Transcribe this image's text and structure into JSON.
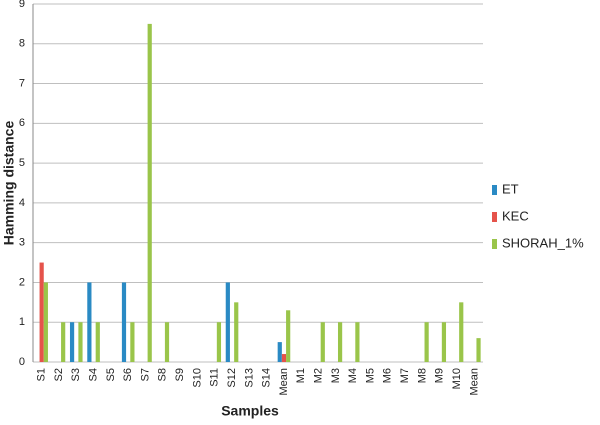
{
  "chart_data": {
    "type": "bar",
    "xlabel": "Samples",
    "ylabel": "Hamming distance",
    "categories": [
      "S1",
      "S2",
      "S3",
      "S4",
      "S5",
      "S6",
      "S7",
      "S8",
      "S9",
      "S10",
      "S11",
      "S12",
      "S13",
      "S14",
      "Mean",
      "M1",
      "M2",
      "M3",
      "M4",
      "M5",
      "M6",
      "M7",
      "M8",
      "M9",
      "M10",
      "Mean"
    ],
    "series": [
      {
        "name": "ET",
        "color": "#2a8ac4",
        "values": [
          0,
          0,
          1,
          2,
          0,
          2,
          0,
          0,
          0,
          0,
          0,
          2,
          0,
          0,
          0.5,
          0,
          0,
          0,
          0,
          0,
          0,
          0,
          0,
          0,
          0,
          0
        ]
      },
      {
        "name": "KEC",
        "color": "#e5534b",
        "values": [
          2.5,
          0,
          0,
          0,
          0,
          0,
          0,
          0,
          0,
          0,
          0,
          0,
          0,
          0,
          0.2,
          0,
          0,
          0,
          0,
          0,
          0,
          0,
          0,
          0,
          0,
          0
        ]
      },
      {
        "name": "SHORAH_1%",
        "color": "#9ac54a",
        "values": [
          2,
          1,
          1,
          1,
          0,
          1,
          8.5,
          1,
          0,
          0,
          1,
          1.5,
          0,
          0,
          1.3,
          0,
          1,
          1,
          1,
          0,
          0,
          0,
          1,
          1,
          1.5,
          0.6
        ]
      }
    ],
    "ylim": [
      0,
      9
    ],
    "yticks": [
      0,
      1,
      2,
      3,
      4,
      5,
      6,
      7,
      8,
      9
    ],
    "grid": true,
    "legend": "right"
  }
}
